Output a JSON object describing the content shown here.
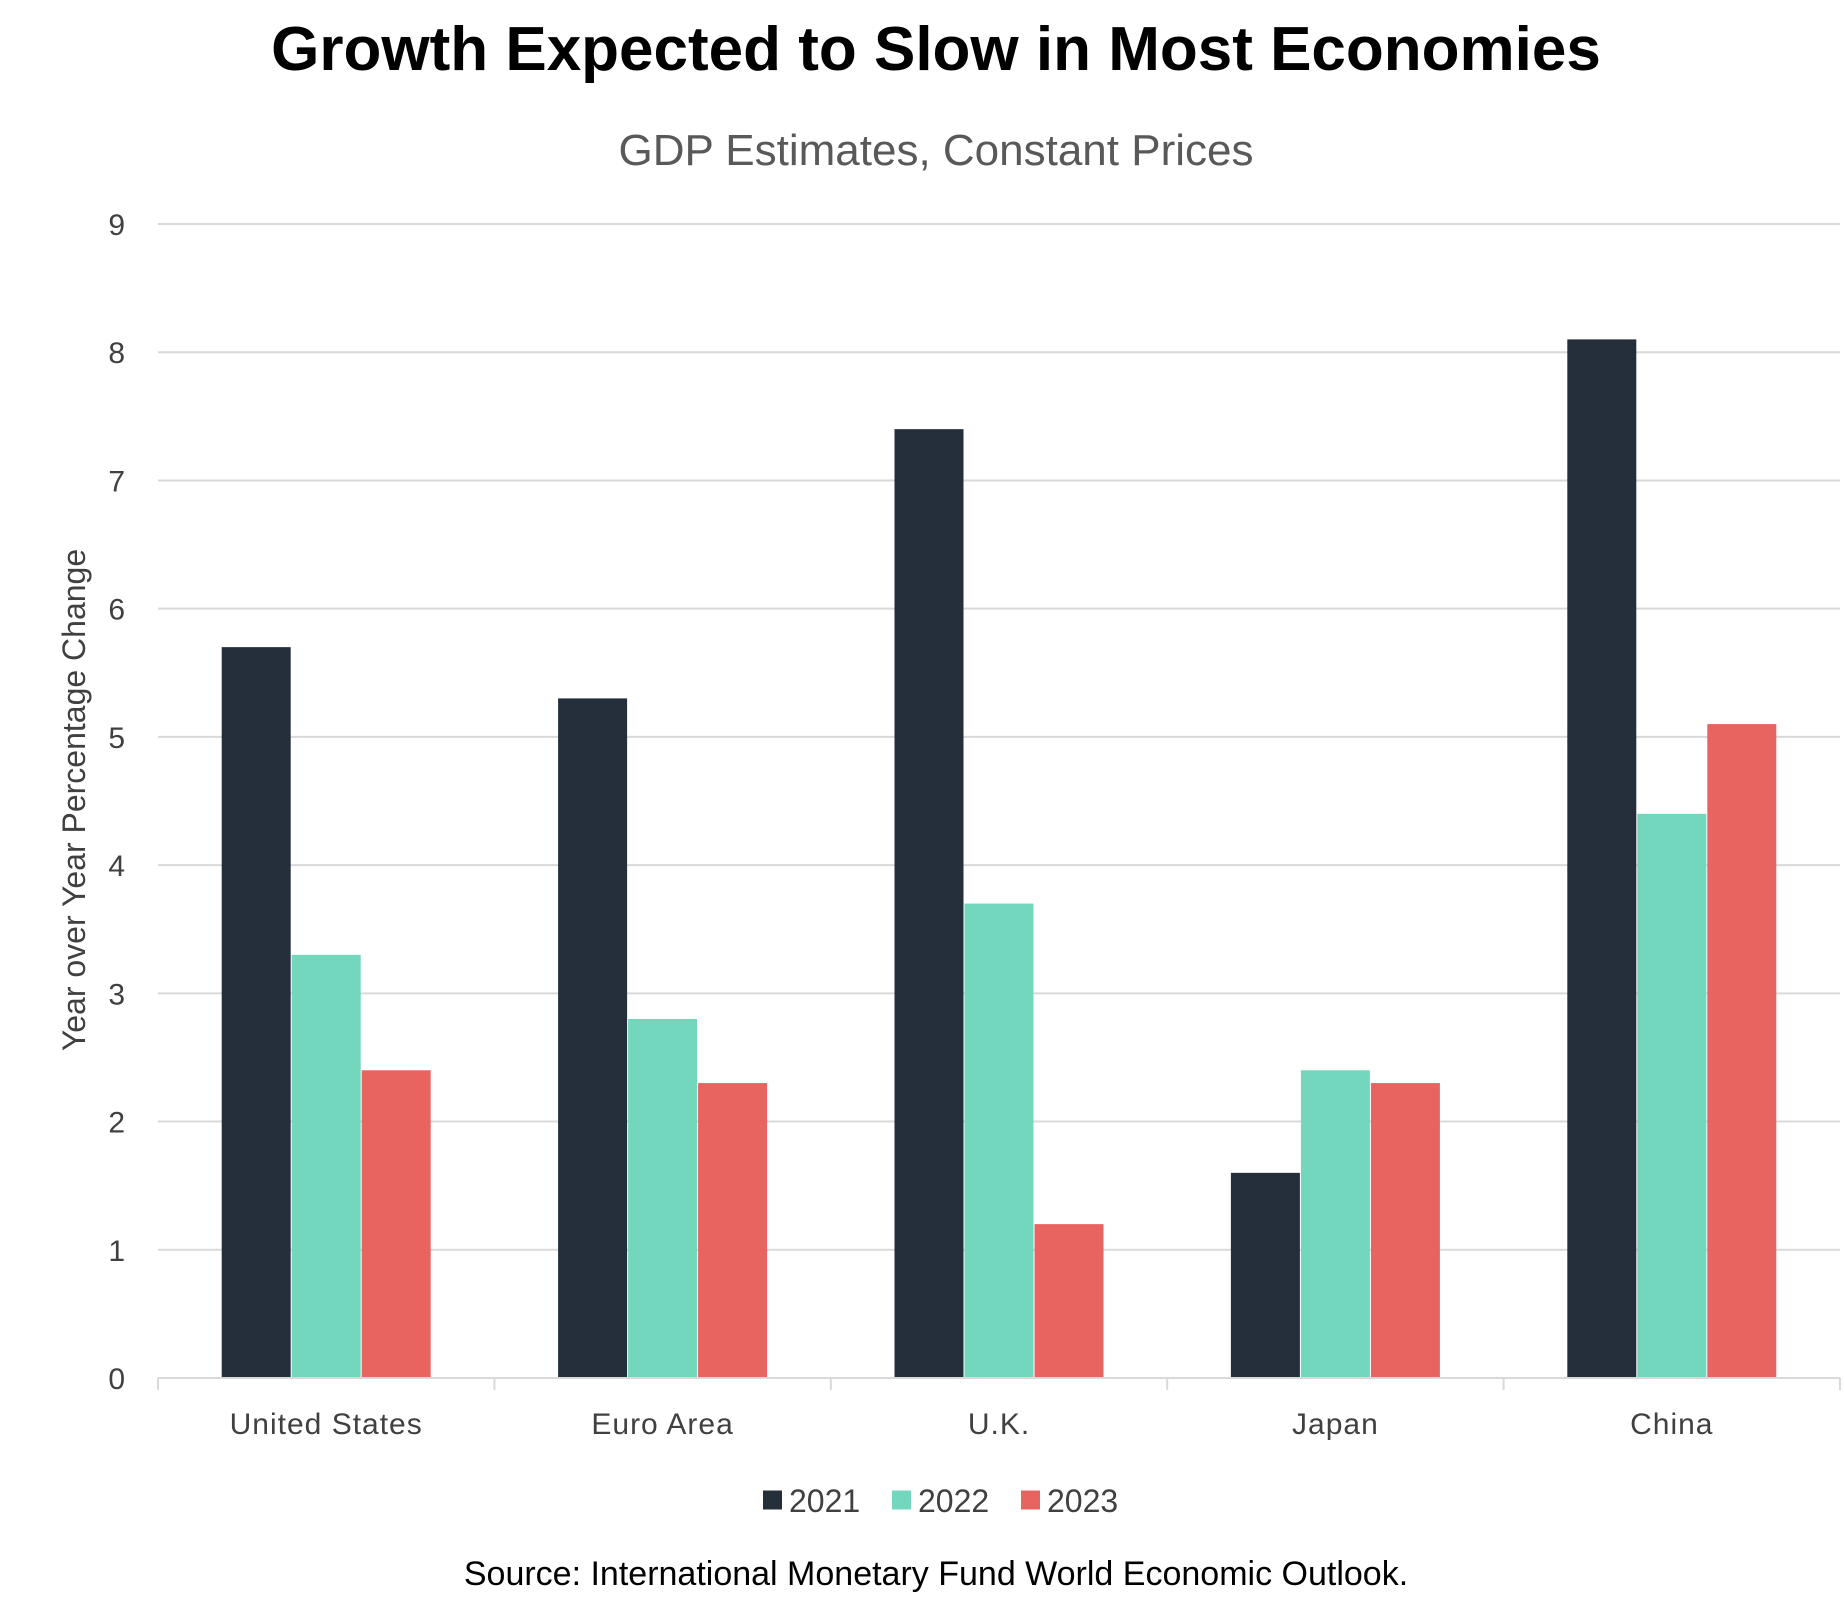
{
  "chart_data": {
    "type": "bar",
    "title": "Growth Expected to Slow in Most Economies",
    "subtitle": "GDP Estimates, Constant Prices",
    "xlabel": "",
    "ylabel": "Year over Year Percentage Change",
    "ylim": [
      0,
      9
    ],
    "yticks": [
      "0",
      "1",
      "2",
      "3",
      "4",
      "5",
      "6",
      "7",
      "8",
      "9"
    ],
    "categories": [
      "United States",
      "Euro Area",
      "U.K.",
      "Japan",
      "China"
    ],
    "series": [
      {
        "name": "2021",
        "color": "#252f3b",
        "values": [
          5.7,
          5.3,
          7.4,
          1.6,
          8.1
        ]
      },
      {
        "name": "2022",
        "color": "#72d7bd",
        "values": [
          3.3,
          2.8,
          3.7,
          2.4,
          4.4
        ]
      },
      {
        "name": "2023",
        "color": "#e86461",
        "values": [
          2.4,
          2.3,
          1.2,
          2.3,
          5.1
        ]
      }
    ],
    "grid": true,
    "legend": "bottom-center",
    "source": "Source: International Monetary Fund World Economic Outlook."
  }
}
